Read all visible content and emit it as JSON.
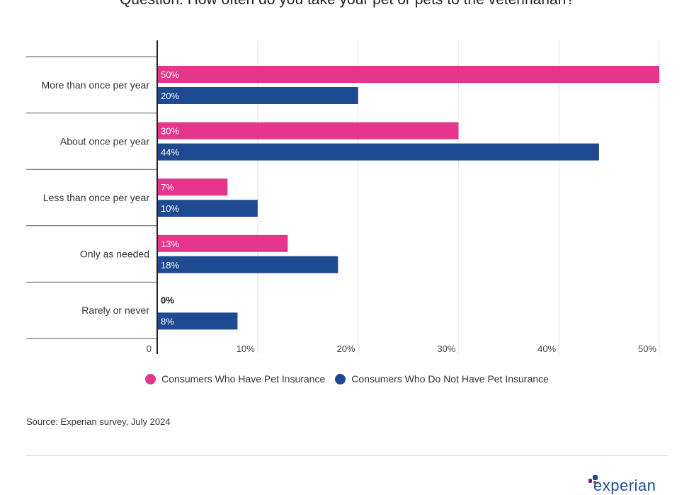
{
  "title": "Question: How often do you take your pet or pets to the veterinarian?",
  "source": "Source: Experian survey, July 2024",
  "logo_text": "experian",
  "colors": {
    "insured": "#e5368b",
    "not_insured": "#1d4a91",
    "logo": "#1d4f91"
  },
  "chart_data": {
    "type": "bar",
    "orientation": "horizontal",
    "categories": [
      "More than once per year",
      "About once per year",
      "Less than once per year",
      "Only as needed",
      "Rarely or never"
    ],
    "series": [
      {
        "name": "Consumers Who Have Pet Insurance",
        "values": [
          50,
          30,
          7,
          13,
          0
        ],
        "labels": [
          "50%",
          "30%",
          "7%",
          "13%",
          "0%"
        ]
      },
      {
        "name": "Consumers Who Do Not Have Pet Insurance",
        "values": [
          20,
          44,
          10,
          18,
          8
        ],
        "labels": [
          "20%",
          "44%",
          "10%",
          "18%",
          "8%"
        ]
      }
    ],
    "xlim": [
      0,
      50
    ],
    "xticks": [
      "0",
      "10%",
      "20%",
      "30%",
      "40%",
      "50%"
    ],
    "grid": true,
    "legend_position": "bottom"
  }
}
